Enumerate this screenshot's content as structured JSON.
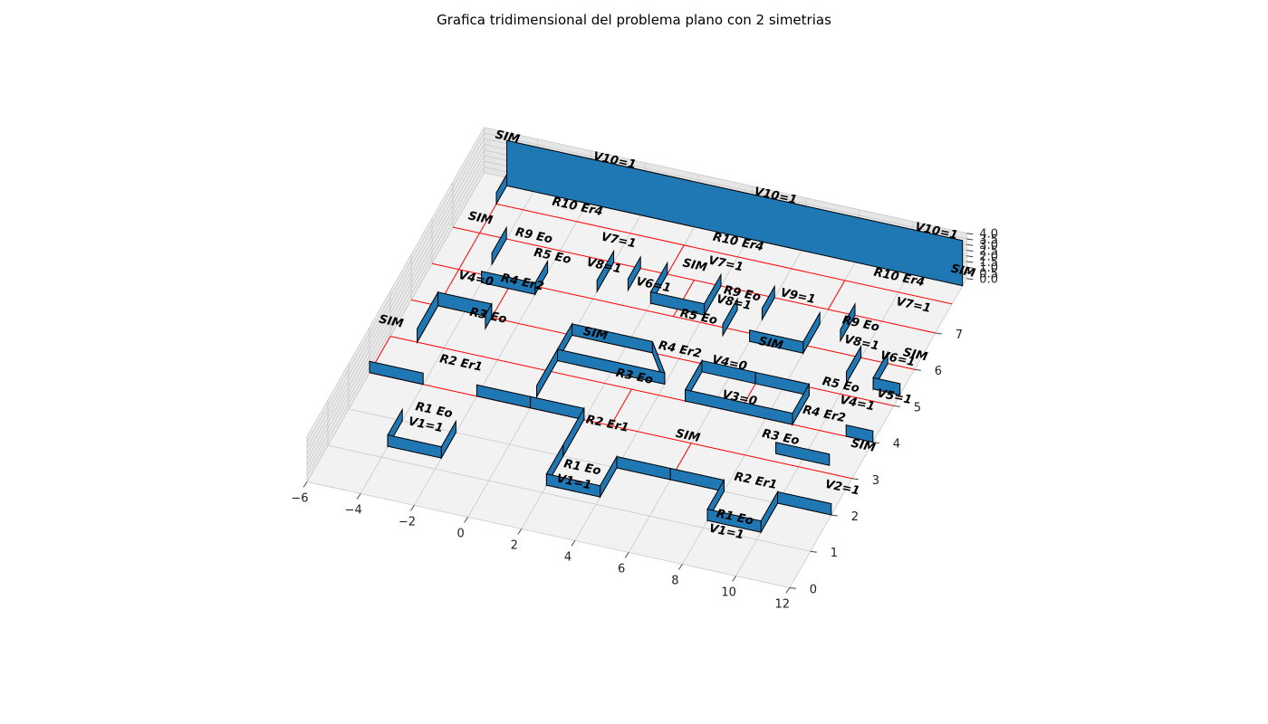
{
  "chart_data": {
    "type": "3d-floorplan",
    "title": "Grafica tridimensional del problema plano con 2 simetrias",
    "xlim": [
      -6,
      12
    ],
    "ylim": [
      0,
      7
    ],
    "zlim": [
      0,
      4
    ],
    "xticks": [
      "−6",
      "−4",
      "−2",
      "0",
      "2",
      "4",
      "6",
      "8",
      "10",
      "12"
    ],
    "yticks": [
      "0",
      "1",
      "2",
      "3",
      "4",
      "5",
      "6",
      "7"
    ],
    "zticks": [
      "0.0",
      "0.5",
      "1.0",
      "1.5",
      "2.0",
      "2.5",
      "3.0",
      "3.5",
      "4.0"
    ],
    "grid": true,
    "colors": {
      "wall": "#1f77b4",
      "edge": "#000000",
      "red_line": "#ff0000",
      "pane": "#f2f2f2",
      "grid": "#c8c8c8"
    },
    "walls": [
      {
        "x": [
          -4,
          -4
        ],
        "y": [
          2,
          1.3
        ],
        "h": 1
      },
      {
        "x": [
          -4,
          -2
        ],
        "y": [
          1.3,
          1.3
        ],
        "h": 1
      },
      {
        "x": [
          -2,
          -2
        ],
        "y": [
          1.3,
          2
        ],
        "h": 1
      },
      {
        "x": [
          -6,
          -4
        ],
        "y": [
          3,
          3
        ],
        "h": 1
      },
      {
        "x": [
          -2,
          0
        ],
        "y": [
          3,
          3
        ],
        "h": 1
      },
      {
        "x": [
          0,
          2
        ],
        "y": [
          3,
          3
        ],
        "h": 1
      },
      {
        "x": [
          2,
          2
        ],
        "y": [
          3,
          2
        ],
        "h": 1
      },
      {
        "x": [
          2,
          2
        ],
        "y": [
          2,
          1.2
        ],
        "h": 1
      },
      {
        "x": [
          2,
          4
        ],
        "y": [
          1.2,
          1.2
        ],
        "h": 1
      },
      {
        "x": [
          4,
          4
        ],
        "y": [
          1.2,
          2
        ],
        "h": 1
      },
      {
        "x": [
          4,
          6
        ],
        "y": [
          2,
          2
        ],
        "h": 1
      },
      {
        "x": [
          6,
          8
        ],
        "y": [
          2,
          2
        ],
        "h": 1
      },
      {
        "x": [
          8,
          8
        ],
        "y": [
          2,
          1.2
        ],
        "h": 1
      },
      {
        "x": [
          8,
          10
        ],
        "y": [
          1.2,
          1.2
        ],
        "h": 1
      },
      {
        "x": [
          10,
          10
        ],
        "y": [
          1.2,
          2
        ],
        "h": 1
      },
      {
        "x": [
          10,
          12
        ],
        "y": [
          2,
          2
        ],
        "h": 1
      },
      {
        "x": [
          -5,
          -5
        ],
        "y": [
          4,
          5
        ],
        "h": 1.2
      },
      {
        "x": [
          -5,
          -3
        ],
        "y": [
          5,
          5
        ],
        "h": 1.2
      },
      {
        "x": [
          -3,
          -3
        ],
        "y": [
          5,
          4.7
        ],
        "h": 1.2
      },
      {
        "x": [
          0,
          0
        ],
        "y": [
          3.3,
          4.3
        ],
        "h": 1
      },
      {
        "x": [
          0,
          4
        ],
        "y": [
          4.3,
          4.3
        ],
        "h": 1
      },
      {
        "x": [
          0,
          0
        ],
        "y": [
          4.3,
          5
        ],
        "h": 1
      },
      {
        "x": [
          0,
          3
        ],
        "y": [
          5,
          5
        ],
        "h": 1
      },
      {
        "x": [
          3,
          4
        ],
        "y": [
          5,
          4.3
        ],
        "h": 1
      },
      {
        "x": [
          5,
          5
        ],
        "y": [
          4,
          4.8
        ],
        "h": 1
      },
      {
        "x": [
          5,
          7
        ],
        "y": [
          4.8,
          4.8
        ],
        "h": 1
      },
      {
        "x": [
          7,
          9
        ],
        "y": [
          4.8,
          4.8
        ],
        "h": 1
      },
      {
        "x": [
          9,
          9
        ],
        "y": [
          4.8,
          4
        ],
        "h": 1
      },
      {
        "x": [
          5,
          9
        ],
        "y": [
          4,
          4
        ],
        "h": 1
      },
      {
        "x": [
          9,
          11
        ],
        "y": [
          3.2,
          3.2
        ],
        "h": 1
      },
      {
        "x": [
          11,
          12
        ],
        "y": [
          4,
          4
        ],
        "h": 1
      },
      {
        "x": [
          -4,
          -2
        ],
        "y": [
          5.8,
          5.8
        ],
        "h": 1
      },
      {
        "x": [
          -2,
          -2
        ],
        "y": [
          5.8,
          6.4
        ],
        "h": 1
      },
      {
        "x": [
          -4,
          -4
        ],
        "y": [
          6.3,
          7
        ],
        "h": 1
      },
      {
        "x": [
          0,
          0
        ],
        "y": [
          6.2,
          7
        ],
        "h": 1
      },
      {
        "x": [
          1,
          1
        ],
        "y": [
          6.4,
          7
        ],
        "h": 1
      },
      {
        "x": [
          2,
          2
        ],
        "y": [
          6.2,
          7
        ],
        "h": 1
      },
      {
        "x": [
          2,
          4
        ],
        "y": [
          6.2,
          6.2
        ],
        "h": 1
      },
      {
        "x": [
          4,
          4
        ],
        "y": [
          6.2,
          7
        ],
        "h": 1
      },
      {
        "x": [
          5,
          5
        ],
        "y": [
          5.8,
          6.5
        ],
        "h": 1
      },
      {
        "x": [
          6,
          6
        ],
        "y": [
          6.4,
          7
        ],
        "h": 1
      },
      {
        "x": [
          6,
          8
        ],
        "y": [
          5.8,
          5.8
        ],
        "h": 1
      },
      {
        "x": [
          8,
          8
        ],
        "y": [
          5.8,
          6.6
        ],
        "h": 1
      },
      {
        "x": [
          9,
          9
        ],
        "y": [
          6.3,
          7
        ],
        "h": 1
      },
      {
        "x": [
          10,
          10
        ],
        "y": [
          5.3,
          6
        ],
        "h": 1
      },
      {
        "x": [
          11,
          11
        ],
        "y": [
          5.3,
          6
        ],
        "h": 1
      },
      {
        "x": [
          11,
          12
        ],
        "y": [
          5.3,
          5.3
        ],
        "h": 1
      },
      {
        "x": [
          -5,
          -5
        ],
        "y": [
          7.8,
          8.3
        ],
        "h": 1
      },
      {
        "x": [
          -5,
          12
        ],
        "y": [
          8.3,
          8.3
        ],
        "h": 4
      }
    ],
    "red_lines": [
      {
        "x": [
          -6,
          12
        ],
        "y": [
          3,
          3
        ]
      },
      {
        "x": [
          -6,
          12
        ],
        "y": [
          4,
          4
        ]
      },
      {
        "x": [
          -6,
          12
        ],
        "y": [
          5,
          5
        ]
      },
      {
        "x": [
          -6,
          12
        ],
        "y": [
          6,
          6
        ]
      },
      {
        "x": [
          -6,
          12
        ],
        "y": [
          7,
          7
        ]
      },
      {
        "x": [
          -5,
          12
        ],
        "y": [
          7.8,
          7.8
        ]
      },
      {
        "x": [
          -6,
          -6
        ],
        "y": [
          3,
          4
        ]
      },
      {
        "x": [
          -5,
          -5
        ],
        "y": [
          4,
          7.8
        ]
      },
      {
        "x": [
          6,
          6
        ],
        "y": [
          2,
          3
        ]
      },
      {
        "x": [
          3,
          3
        ],
        "y": [
          3,
          4
        ]
      },
      {
        "x": [
          7,
          7
        ],
        "y": [
          4,
          5
        ]
      },
      {
        "x": [
          -3,
          -3
        ],
        "y": [
          5,
          6
        ]
      },
      {
        "x": [
          3,
          3
        ],
        "y": [
          6,
          7
        ]
      },
      {
        "x": [
          2,
          2
        ],
        "y": [
          7,
          7.8
        ]
      },
      {
        "x": [
          8,
          8
        ],
        "y": [
          7,
          7.8
        ]
      }
    ],
    "labels": [
      {
        "text": "V10=1",
        "x": -1,
        "y": 8.3,
        "z": 4
      },
      {
        "text": "V10=1",
        "x": 5,
        "y": 8.3,
        "z": 4
      },
      {
        "text": "V10=1",
        "x": 11,
        "y": 8.3,
        "z": 4
      },
      {
        "text": "SIM",
        "x": -5,
        "y": 8.3,
        "z": 4
      },
      {
        "text": "SIM",
        "x": 12,
        "y": 8.3,
        "z": 1
      },
      {
        "text": "R10 Er4",
        "x": -2,
        "y": 7.8,
        "z": 1
      },
      {
        "text": "R10 Er4",
        "x": 4,
        "y": 7.8,
        "z": 1
      },
      {
        "text": "R10 Er4",
        "x": 10,
        "y": 7.8,
        "z": 1
      },
      {
        "text": "V7=1",
        "x": 0,
        "y": 7.2,
        "z": 1
      },
      {
        "text": "V7=1",
        "x": 4,
        "y": 7.2,
        "z": 1
      },
      {
        "text": "V7=1",
        "x": 11,
        "y": 7.2,
        "z": 1
      },
      {
        "text": "R9 Eo",
        "x": -3,
        "y": 7,
        "z": 0.5
      },
      {
        "text": "R9 Eo",
        "x": 5,
        "y": 6.7,
        "z": 0.5
      },
      {
        "text": "R9 Eo",
        "x": 9.5,
        "y": 6.6,
        "z": 0.5
      },
      {
        "text": "V8=1",
        "x": 0,
        "y": 6.5,
        "z": 1
      },
      {
        "text": "V8=1",
        "x": 5,
        "y": 6.3,
        "z": 1
      },
      {
        "text": "V8=1",
        "x": 10,
        "y": 6,
        "z": 1
      },
      {
        "text": "V6=1",
        "x": 2,
        "y": 6.3,
        "z": 1
      },
      {
        "text": "V6=1",
        "x": 11.5,
        "y": 5.8,
        "z": 1
      },
      {
        "text": "V9=1",
        "x": 7,
        "y": 6.8,
        "z": 1
      },
      {
        "text": "SIM",
        "x": 3,
        "y": 7,
        "z": 1
      },
      {
        "text": "SIM",
        "x": -5,
        "y": 7,
        "z": 1
      },
      {
        "text": "R5 Eo",
        "x": -2,
        "y": 6.6,
        "z": 0.5
      },
      {
        "text": "R5 Eo",
        "x": 4,
        "y": 5.9,
        "z": 0.5
      },
      {
        "text": "R5 Eo",
        "x": 10,
        "y": 5,
        "z": 0.5
      },
      {
        "text": "SIM",
        "x": 7,
        "y": 5.5,
        "z": 1
      },
      {
        "text": "SIM",
        "x": 12,
        "y": 6,
        "z": 1
      },
      {
        "text": "V5=1",
        "x": 12,
        "y": 5,
        "z": 0.5
      },
      {
        "text": "R4 Er2",
        "x": -2.5,
        "y": 5.8,
        "z": 0.5
      },
      {
        "text": "R4 Er2",
        "x": 4,
        "y": 5,
        "z": 0.5
      },
      {
        "text": "R4 Er2",
        "x": 10,
        "y": 4.2,
        "z": 0.5
      },
      {
        "text": "V4=0",
        "x": -4,
        "y": 5.5,
        "z": 1
      },
      {
        "text": "V4=0",
        "x": 6,
        "y": 4.8,
        "z": 1
      },
      {
        "text": "V4=1",
        "x": 11,
        "y": 4.5,
        "z": 1
      },
      {
        "text": "R3 Eo",
        "x": -3,
        "y": 4.8,
        "z": 0.5
      },
      {
        "text": "R3 Eo",
        "x": 3,
        "y": 4.1,
        "z": 0.5
      },
      {
        "text": "R3 Eo",
        "x": 9,
        "y": 3.4,
        "z": 0.5
      },
      {
        "text": "SIM",
        "x": -6,
        "y": 4,
        "z": 1
      },
      {
        "text": "SIM",
        "x": 1,
        "y": 4.8,
        "z": 1
      },
      {
        "text": "SIM",
        "x": 12,
        "y": 3.5,
        "z": 1
      },
      {
        "text": "V3=0",
        "x": 7,
        "y": 4,
        "z": 1
      },
      {
        "text": "R2 Er1",
        "x": -3,
        "y": 3.5,
        "z": 0.5
      },
      {
        "text": "R2 Er1",
        "x": 3,
        "y": 2.8,
        "z": 0.5
      },
      {
        "text": "R2 Er1",
        "x": 9,
        "y": 2.2,
        "z": 0.5
      },
      {
        "text": "SIM",
        "x": 6,
        "y": 2.8,
        "z": 1
      },
      {
        "text": "V2=1",
        "x": 12,
        "y": 2.5,
        "z": 0.5
      },
      {
        "text": "R1 Eo",
        "x": -3,
        "y": 2.2,
        "z": 0.5
      },
      {
        "text": "R1 Eo",
        "x": 3,
        "y": 1.6,
        "z": 0.5
      },
      {
        "text": "R1 Eo",
        "x": 9,
        "y": 1.2,
        "z": 0.5
      },
      {
        "text": "V1=1",
        "x": -3,
        "y": 1.8,
        "z": 0.5
      },
      {
        "text": "V1=1",
        "x": 3,
        "y": 1.2,
        "z": 0.5
      },
      {
        "text": "V1=1",
        "x": 9,
        "y": 0.8,
        "z": 0.5
      }
    ]
  }
}
